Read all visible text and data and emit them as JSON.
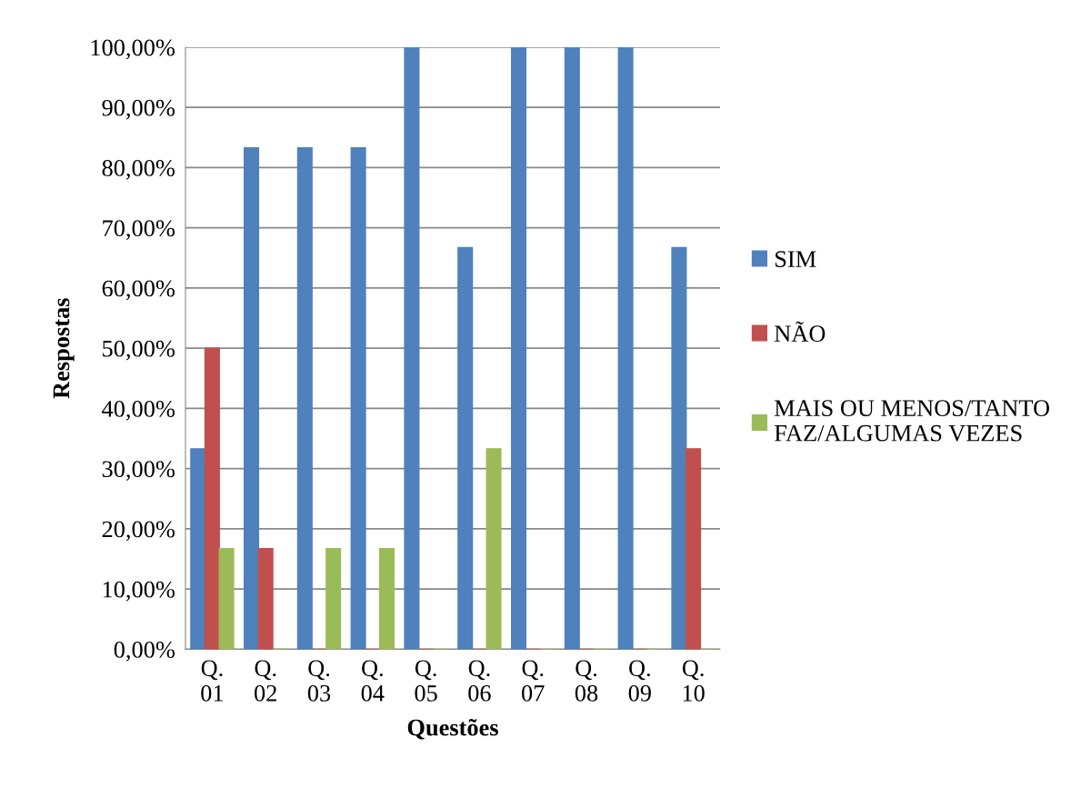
{
  "chart_data": {
    "type": "bar",
    "xlabel": "Questões",
    "ylabel": "Respostas",
    "categories": [
      "Q.\n01",
      "Q.\n02",
      "Q.\n03",
      "Q.\n04",
      "Q.\n05",
      "Q.\n06",
      "Q.\n07",
      "Q.\n08",
      "Q.\n09",
      "Q.\n10"
    ],
    "series": [
      {
        "name": "SIM",
        "color": "#4f81bd",
        "values": [
          33.3,
          83.3,
          83.3,
          83.3,
          100,
          66.7,
          100,
          100,
          100,
          66.7
        ]
      },
      {
        "name": "NÃO",
        "color": "#c0504d",
        "values": [
          50,
          16.7,
          0,
          0,
          0,
          0,
          0,
          0,
          0,
          33.3
        ]
      },
      {
        "name": "MAIS OU MENOS/TANTO\nFAZ/ALGUMAS VEZES",
        "color": "#9bbb59",
        "values": [
          16.7,
          0,
          16.7,
          16.7,
          0,
          33.3,
          0,
          0,
          0,
          0
        ]
      }
    ],
    "ylim": [
      0,
      100
    ],
    "yticks": [
      {
        "value": 0,
        "label": "0,00%"
      },
      {
        "value": 10,
        "label": "10,00%"
      },
      {
        "value": 20,
        "label": "20,00%"
      },
      {
        "value": 30,
        "label": "30,00%"
      },
      {
        "value": 40,
        "label": "40,00%"
      },
      {
        "value": 50,
        "label": "50,00%"
      },
      {
        "value": 60,
        "label": "60,00%"
      },
      {
        "value": 70,
        "label": "70,00%"
      },
      {
        "value": 80,
        "label": "80,00%"
      },
      {
        "value": 90,
        "label": "90,00%"
      },
      {
        "value": 100,
        "label": "100,00%"
      }
    ],
    "grid": "y",
    "legend": "right"
  }
}
